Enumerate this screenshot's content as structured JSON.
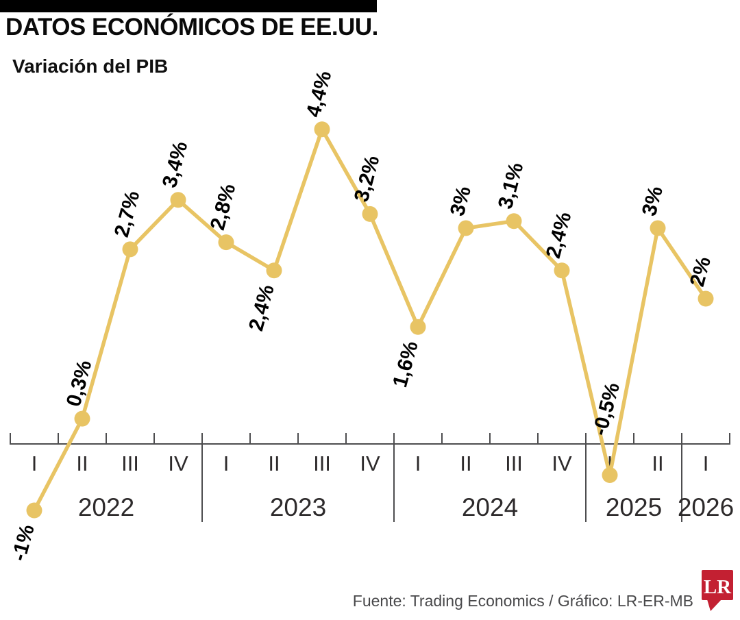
{
  "header": {
    "title": "DATOS ECONÓMICOS DE EE.UU.",
    "subtitle": "Variación del PIB"
  },
  "footer": {
    "source": "Fuente: Trading Economics / Gráfico: LR-ER-MB",
    "logo_text": "LR"
  },
  "colors": {
    "line": "#E8C464",
    "data_label": "#000000",
    "axis": "#4D4D4F",
    "tick_label": "#2D2A2B",
    "footer_text": "#48484A",
    "logo_red": "#C32032",
    "header_bar": "#000000"
  },
  "chart_data": {
    "type": "line",
    "title": "Variación del PIB",
    "unit": "%",
    "decimal_separator": ",",
    "xlabel": "",
    "ylabel": "",
    "ylim": [
      -1.5,
      4.8
    ],
    "grid": false,
    "legend": false,
    "value_labels_shown": true,
    "x_axis": {
      "years": [
        {
          "label": "2022",
          "quarters": [
            "I",
            "II",
            "III",
            "IV"
          ]
        },
        {
          "label": "2023",
          "quarters": [
            "I",
            "II",
            "III",
            "IV"
          ]
        },
        {
          "label": "2024",
          "quarters": [
            "I",
            "II",
            "III",
            "IV"
          ]
        },
        {
          "label": "2025",
          "quarters": [
            "I",
            "II"
          ]
        },
        {
          "label": "2026",
          "quarters": [
            "I"
          ]
        }
      ]
    },
    "points": [
      {
        "year": "2022",
        "quarter": "I",
        "value": -1.0,
        "label": "-1%",
        "label_side": "below"
      },
      {
        "year": "2022",
        "quarter": "II",
        "value": 0.3,
        "label": "0,3%",
        "label_side": "above"
      },
      {
        "year": "2022",
        "quarter": "III",
        "value": 2.7,
        "label": "2,7%",
        "label_side": "above"
      },
      {
        "year": "2022",
        "quarter": "IV",
        "value": 3.4,
        "label": "3,4%",
        "label_side": "above"
      },
      {
        "year": "2023",
        "quarter": "I",
        "value": 2.8,
        "label": "2,8%",
        "label_side": "above"
      },
      {
        "year": "2023",
        "quarter": "II",
        "value": 2.4,
        "label": "2,4%",
        "label_side": "below"
      },
      {
        "year": "2023",
        "quarter": "III",
        "value": 4.4,
        "label": "4,4%",
        "label_side": "above"
      },
      {
        "year": "2023",
        "quarter": "IV",
        "value": 3.2,
        "label": "3,2%",
        "label_side": "above"
      },
      {
        "year": "2024",
        "quarter": "I",
        "value": 1.6,
        "label": "1,6%",
        "label_side": "below"
      },
      {
        "year": "2024",
        "quarter": "II",
        "value": 3.0,
        "label": "3%",
        "label_side": "above"
      },
      {
        "year": "2024",
        "quarter": "III",
        "value": 3.1,
        "label": "3,1%",
        "label_side": "above"
      },
      {
        "year": "2024",
        "quarter": "IV",
        "value": 2.4,
        "label": "2,4%",
        "label_side": "above"
      },
      {
        "year": "2025",
        "quarter": "I",
        "value": -0.5,
        "label": "-0,5%",
        "label_side": "above",
        "label_dx": -6,
        "label_dy": -56
      },
      {
        "year": "2025",
        "quarter": "II",
        "value": 3.0,
        "label": "3%",
        "label_side": "above"
      },
      {
        "year": "2026",
        "quarter": "I",
        "value": 2.0,
        "label": "2%",
        "label_side": "above"
      }
    ]
  }
}
